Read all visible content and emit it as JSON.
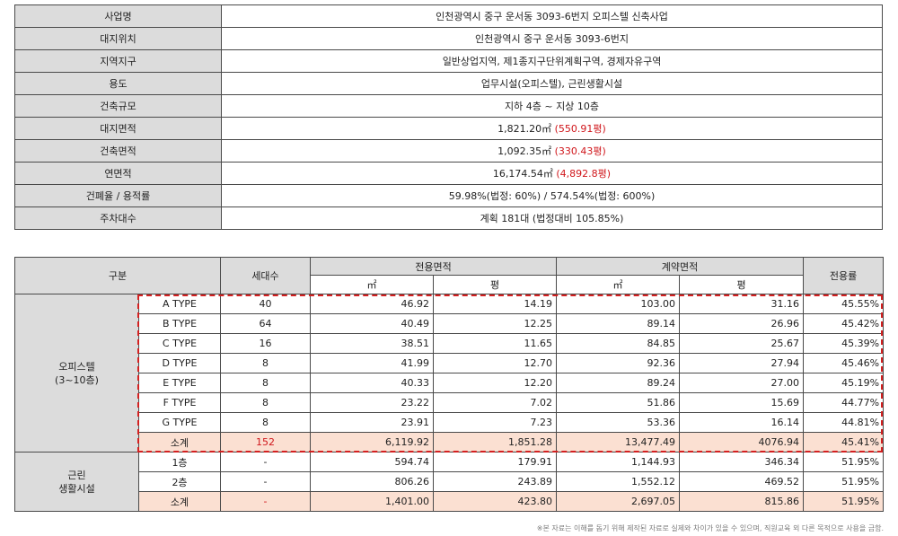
{
  "info": [
    {
      "label": "사업명",
      "value": "인천광역시 중구 운서동 3093-6번지 오피스텔 신축사업"
    },
    {
      "label": "대지위치",
      "value": "인천광역시 중구 운서동 3093-6번지"
    },
    {
      "label": "지역지구",
      "value": "일반상업지역, 제1종지구단위계획구역, 경제자유구역"
    },
    {
      "label": "용도",
      "value": "업무시설(오피스텔), 근린생활시설"
    },
    {
      "label": "건축규모",
      "value": "지하 4층 ~ 지상 10층"
    },
    {
      "label": "대지면적",
      "value": "1,821.20㎡ ",
      "highlight": "(550.91평)"
    },
    {
      "label": "건축면적",
      "value": "1,092.35㎡ ",
      "highlight": "(330.43평)"
    },
    {
      "label": "연면적",
      "value": "16,174.54㎡ ",
      "highlight": "(4,892.8평)"
    },
    {
      "label": "건폐율 / 용적률",
      "value": "59.98%(법정: 60%)   /   574.54%(법정: 600%)"
    },
    {
      "label": "주차대수",
      "value": "계획 181대 (법정대비 105.85%)"
    }
  ],
  "area_table": {
    "headers": {
      "category": "구분",
      "units": "세대수",
      "exclusive_area": "전용면적",
      "contract_area": "계약면적",
      "exclusive_ratio": "전용률",
      "sqm": "㎡",
      "pyeong": "평"
    },
    "officetel": {
      "group_label": "오피스텔\n(3~10층)",
      "rows": [
        {
          "type": "A TYPE",
          "units": "40",
          "ex_sqm": "46.92",
          "ex_py": "14.19",
          "ct_sqm": "103.00",
          "ct_py": "31.16",
          "ratio": "45.55%"
        },
        {
          "type": "B TYPE",
          "units": "64",
          "ex_sqm": "40.49",
          "ex_py": "12.25",
          "ct_sqm": "89.14",
          "ct_py": "26.96",
          "ratio": "45.42%"
        },
        {
          "type": "C TYPE",
          "units": "16",
          "ex_sqm": "38.51",
          "ex_py": "11.65",
          "ct_sqm": "84.85",
          "ct_py": "25.67",
          "ratio": "45.39%"
        },
        {
          "type": "D TYPE",
          "units": "8",
          "ex_sqm": "41.99",
          "ex_py": "12.70",
          "ct_sqm": "92.36",
          "ct_py": "27.94",
          "ratio": "45.46%"
        },
        {
          "type": "E TYPE",
          "units": "8",
          "ex_sqm": "40.33",
          "ex_py": "12.20",
          "ct_sqm": "89.24",
          "ct_py": "27.00",
          "ratio": "45.19%"
        },
        {
          "type": "F TYPE",
          "units": "8",
          "ex_sqm": "23.22",
          "ex_py": "7.02",
          "ct_sqm": "51.86",
          "ct_py": "15.69",
          "ratio": "44.77%"
        },
        {
          "type": "G TYPE",
          "units": "8",
          "ex_sqm": "23.91",
          "ex_py": "7.23",
          "ct_sqm": "53.36",
          "ct_py": "16.14",
          "ratio": "44.81%"
        }
      ],
      "subtotal": {
        "type": "소계",
        "units": "152",
        "ex_sqm": "6,119.92",
        "ex_py": "1,851.28",
        "ct_sqm": "13,477.49",
        "ct_py": "4076.94",
        "ratio": "45.41%"
      }
    },
    "retail": {
      "group_label": "근린\n생활시설",
      "rows": [
        {
          "type": "1층",
          "units": "-",
          "ex_sqm": "594.74",
          "ex_py": "179.91",
          "ct_sqm": "1,144.93",
          "ct_py": "346.34",
          "ratio": "51.95%"
        },
        {
          "type": "2층",
          "units": "-",
          "ex_sqm": "806.26",
          "ex_py": "243.89",
          "ct_sqm": "1,552.12",
          "ct_py": "469.52",
          "ratio": "51.95%"
        }
      ],
      "subtotal": {
        "type": "소계",
        "units": "-",
        "ex_sqm": "1,401.00",
        "ex_py": "423.80",
        "ct_sqm": "2,697.05",
        "ct_py": "815.86",
        "ratio": "51.95%"
      }
    }
  },
  "footnote": "※본 자료는 이해를 돕기 위해 제작된 자료로 실제와 차이가 있을 수 있으며, 직원교육 외 다른 목적으로 사용을 금함."
}
